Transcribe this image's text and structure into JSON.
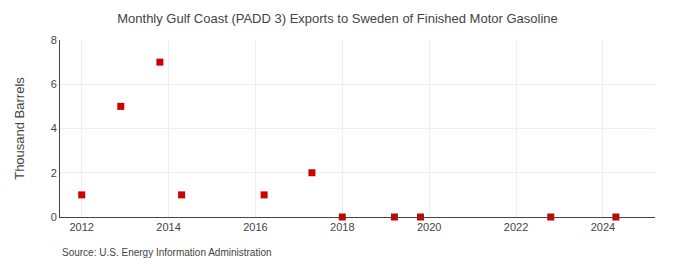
{
  "chart_data": {
    "type": "scatter",
    "title": "Monthly Gulf Coast (PADD 3) Exports to Sweden of Finished Motor Gasoline",
    "ylabel": "Thousand Barrels",
    "annotations": [
      "Source: U.S. Energy Information Administration"
    ],
    "x": [
      2012.0,
      2012.9,
      2013.8,
      2014.3,
      2016.2,
      2017.3,
      2018.0,
      2019.2,
      2019.8,
      2022.8,
      2024.3
    ],
    "values": [
      1,
      5,
      7,
      1,
      1,
      2,
      0,
      0,
      0,
      0,
      0
    ],
    "color": "#cc0000",
    "marker": "square",
    "xlim": [
      2011.5,
      2025.2
    ],
    "xticks": [
      2012,
      2014,
      2016,
      2018,
      2020,
      2022,
      2024
    ],
    "ylim": [
      0,
      8
    ],
    "yticks": [
      0,
      2,
      4,
      6,
      8
    ],
    "grid": true
  }
}
